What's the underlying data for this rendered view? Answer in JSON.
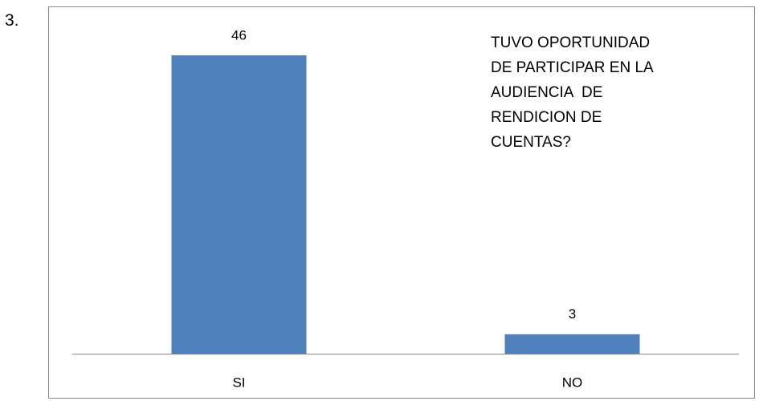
{
  "number": "3.",
  "chart_data": {
    "type": "bar",
    "title": "TUVO OPORTUNIDAD\nDE PARTICIPAR EN LA\nAUDIENCIA  DE\nRENDICION DE\nCUENTAS?",
    "categories": [
      "SI",
      "NO"
    ],
    "values": [
      46,
      3
    ],
    "color": "#4f81bd"
  }
}
